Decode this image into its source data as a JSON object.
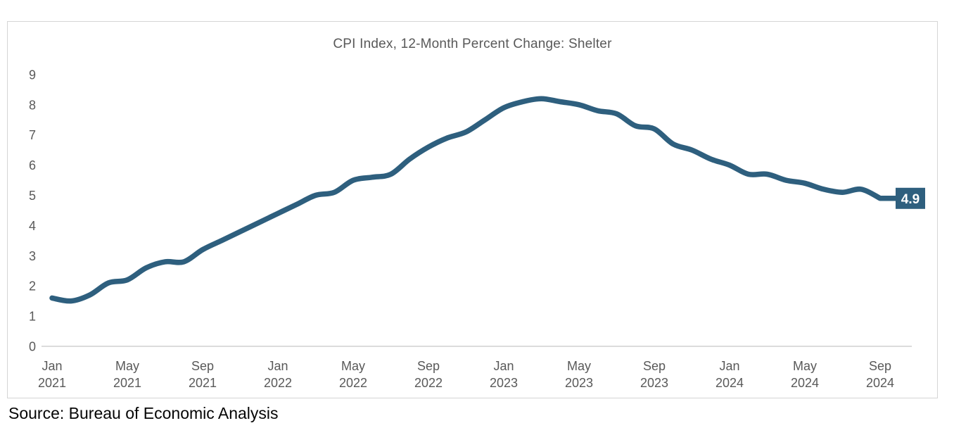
{
  "colors": {
    "line": "#2e5f7e",
    "end_label_box": "#2e5f7e",
    "end_label_text": "#ffffff",
    "axis_text": "#595959",
    "title_text": "#595959",
    "axis_line": "#dcdcdc",
    "frame_border": "#d5d5d5",
    "source_text": "#050505"
  },
  "chart_data": {
    "type": "line",
    "title": "CPI Index, 12-Month Percent Change: Shelter",
    "source": "Source: Bureau of Economic Analysis",
    "xlabel": "",
    "ylabel": "",
    "ylim": [
      0,
      9
    ],
    "yticks": [
      0,
      1,
      2,
      3,
      4,
      5,
      6,
      7,
      8,
      9
    ],
    "grid": false,
    "legend": "none",
    "end_label": "4.9",
    "x": [
      "Jan 2021",
      "Feb 2021",
      "Mar 2021",
      "Apr 2021",
      "May 2021",
      "Jun 2021",
      "Jul 2021",
      "Aug 2021",
      "Sep 2021",
      "Oct 2021",
      "Nov 2021",
      "Dec 2021",
      "Jan 2022",
      "Feb 2022",
      "Mar 2022",
      "Apr 2022",
      "May 2022",
      "Jun 2022",
      "Jul 2022",
      "Aug 2022",
      "Sep 2022",
      "Oct 2022",
      "Nov 2022",
      "Dec 2022",
      "Jan 2023",
      "Feb 2023",
      "Mar 2023",
      "Apr 2023",
      "May 2023",
      "Jun 2023",
      "Jul 2023",
      "Aug 2023",
      "Sep 2023",
      "Oct 2023",
      "Nov 2023",
      "Dec 2023",
      "Jan 2024",
      "Feb 2024",
      "Mar 2024",
      "Apr 2024",
      "May 2024",
      "Jun 2024",
      "Jul 2024",
      "Aug 2024",
      "Sep 2024"
    ],
    "xticks": [
      "Jan 2021",
      "May 2021",
      "Sep 2021",
      "Jan 2022",
      "May 2022",
      "Sep 2022",
      "Jan 2023",
      "May 2023",
      "Sep 2023",
      "Jan 2024",
      "May 2024",
      "Sep 2024"
    ],
    "series": [
      {
        "name": "Shelter CPI 12-month percent change",
        "values": [
          1.6,
          1.5,
          1.7,
          2.1,
          2.2,
          2.6,
          2.8,
          2.8,
          3.2,
          3.5,
          3.8,
          4.1,
          4.4,
          4.7,
          5.0,
          5.1,
          5.5,
          5.6,
          5.7,
          6.2,
          6.6,
          6.9,
          7.1,
          7.5,
          7.9,
          8.1,
          8.2,
          8.1,
          8.0,
          7.8,
          7.7,
          7.3,
          7.2,
          6.7,
          6.5,
          6.2,
          6.0,
          5.7,
          5.7,
          5.5,
          5.4,
          5.2,
          5.1,
          5.2,
          4.9
        ]
      }
    ]
  }
}
